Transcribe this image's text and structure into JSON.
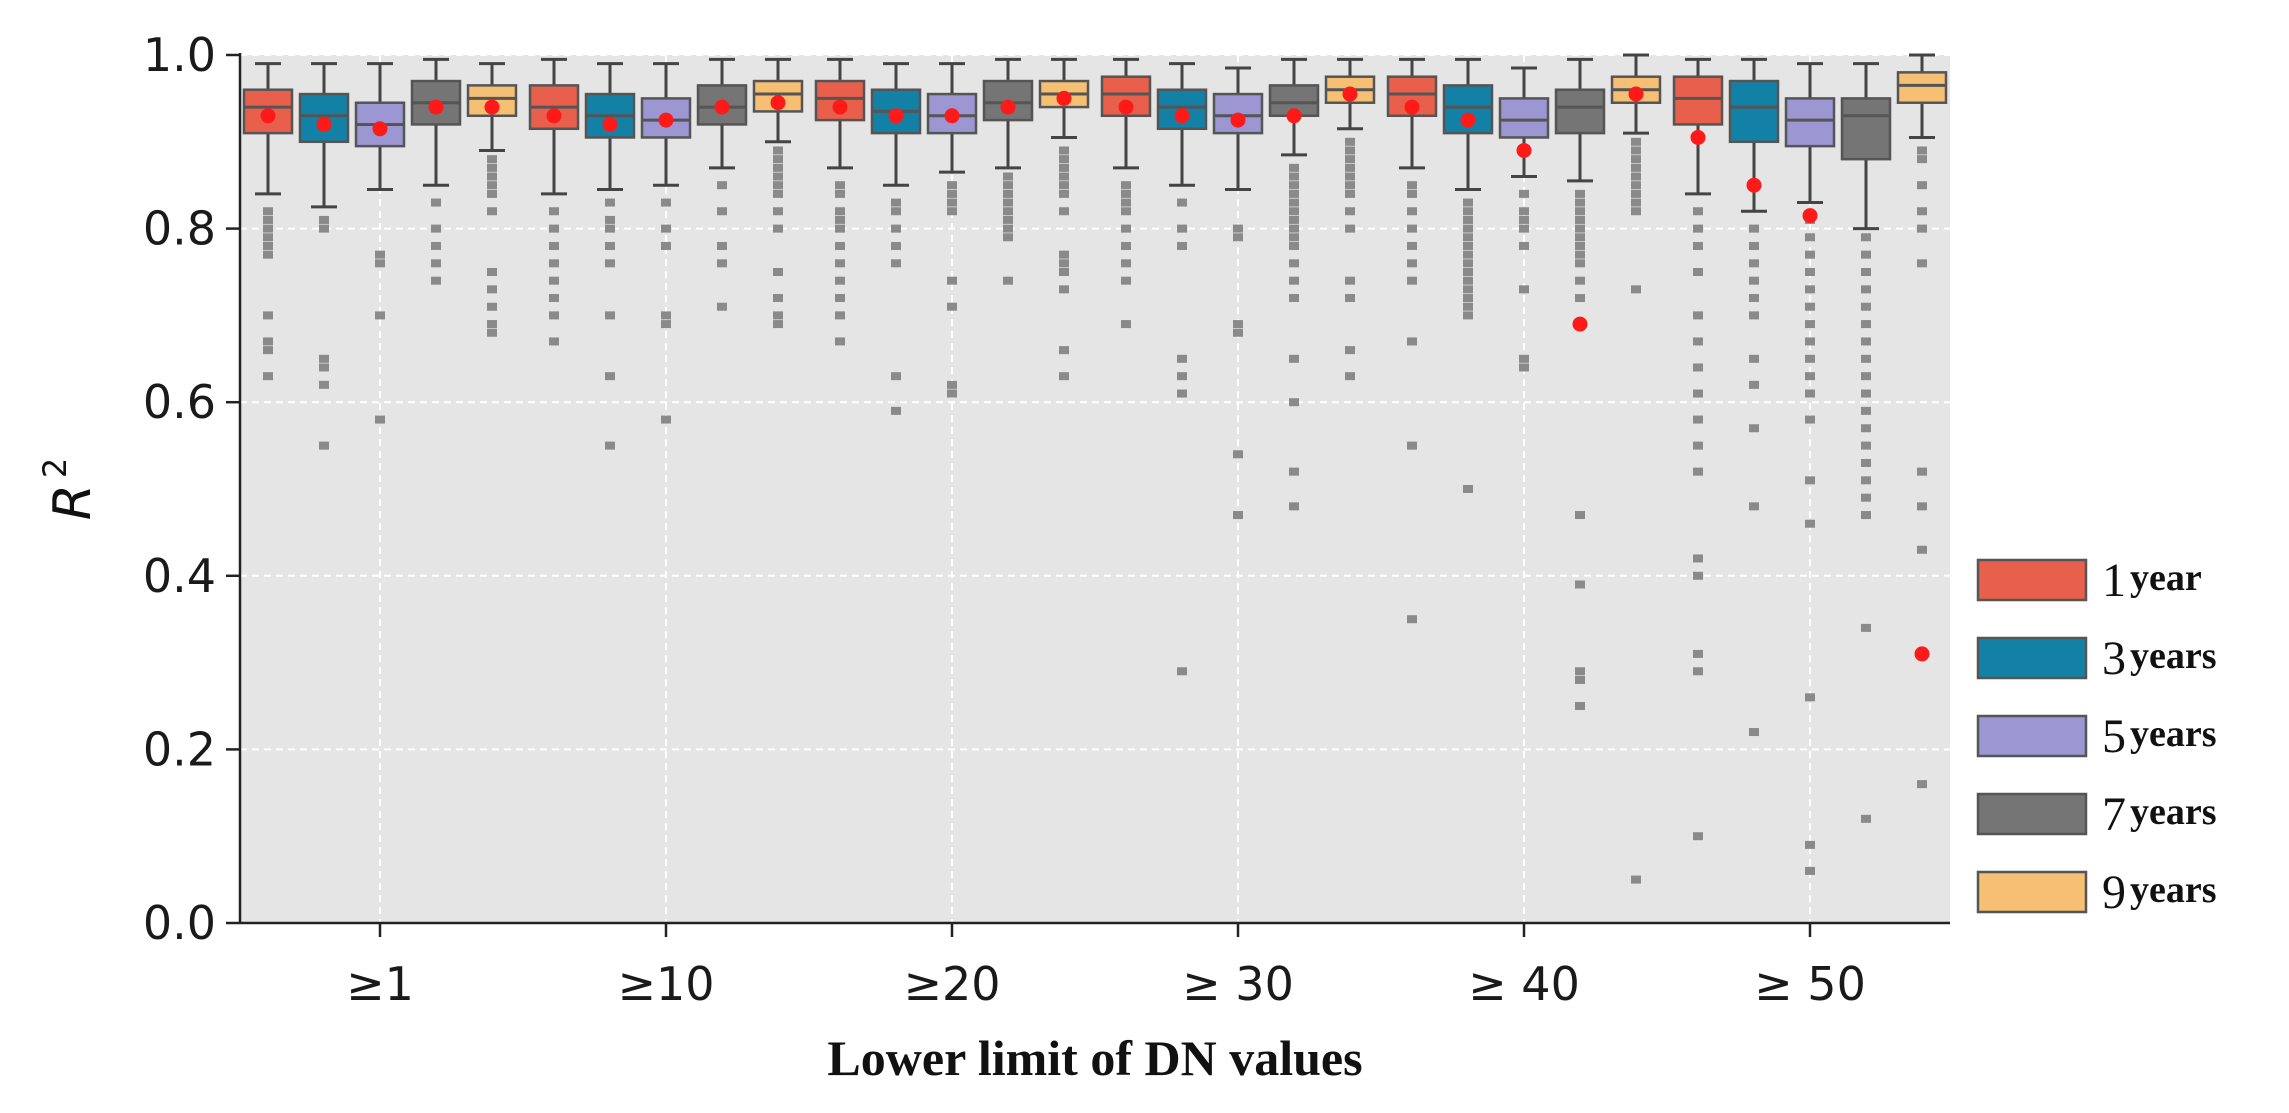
{
  "chart_data": {
    "type": "box",
    "title": "",
    "xlabel": "Lower limit of DN values",
    "ylabel_base": "R",
    "ylabel_sup": "2",
    "ylim": [
      0.0,
      1.0
    ],
    "yticks": [
      "0.0",
      "0.2",
      "0.4",
      "0.6",
      "0.8",
      "1.0"
    ],
    "grid": true,
    "legend_position": "right",
    "categories": [
      "≥1",
      "≥10",
      "≥20",
      "≥ 30",
      "≥ 40",
      "≥ 50"
    ],
    "series": [
      {
        "name": "1 year",
        "name_num": "1",
        "name_word": "year",
        "color": "#e8604c",
        "boxes": [
          {
            "whislo": 0.84,
            "q1": 0.91,
            "median": 0.94,
            "q3": 0.96,
            "whishi": 0.99,
            "mean": 0.93,
            "outliers": [
              0.82,
              0.81,
              0.8,
              0.79,
              0.78,
              0.77,
              0.7,
              0.67,
              0.66,
              0.63
            ]
          },
          {
            "whislo": 0.84,
            "q1": 0.915,
            "median": 0.94,
            "q3": 0.965,
            "whishi": 0.995,
            "mean": 0.93,
            "outliers": [
              0.82,
              0.8,
              0.78,
              0.76,
              0.74,
              0.72,
              0.7,
              0.67
            ]
          },
          {
            "whislo": 0.87,
            "q1": 0.925,
            "median": 0.95,
            "q3": 0.97,
            "whishi": 0.995,
            "mean": 0.94,
            "outliers": [
              0.85,
              0.84,
              0.82,
              0.81,
              0.8,
              0.78,
              0.76,
              0.74,
              0.72,
              0.7,
              0.67
            ]
          },
          {
            "whislo": 0.87,
            "q1": 0.93,
            "median": 0.955,
            "q3": 0.975,
            "whishi": 0.995,
            "mean": 0.94,
            "outliers": [
              0.85,
              0.84,
              0.83,
              0.82,
              0.8,
              0.78,
              0.76,
              0.74,
              0.69
            ]
          },
          {
            "whislo": 0.87,
            "q1": 0.93,
            "median": 0.955,
            "q3": 0.975,
            "whishi": 0.995,
            "mean": 0.94,
            "outliers": [
              0.85,
              0.84,
              0.82,
              0.8,
              0.78,
              0.76,
              0.74,
              0.67,
              0.55,
              0.35
            ]
          },
          {
            "whislo": 0.84,
            "q1": 0.92,
            "median": 0.95,
            "q3": 0.975,
            "whishi": 0.995,
            "mean": 0.905,
            "outliers": [
              0.82,
              0.8,
              0.78,
              0.75,
              0.7,
              0.67,
              0.64,
              0.61,
              0.58,
              0.55,
              0.52,
              0.42,
              0.4,
              0.31,
              0.29,
              0.1
            ]
          }
        ]
      },
      {
        "name": "3 years",
        "name_num": "3",
        "name_word": "years",
        "color": "#1380a6",
        "boxes": [
          {
            "whislo": 0.825,
            "q1": 0.9,
            "median": 0.93,
            "q3": 0.955,
            "whishi": 0.99,
            "mean": 0.92,
            "outliers": [
              0.81,
              0.8,
              0.65,
              0.64,
              0.62,
              0.55
            ]
          },
          {
            "whislo": 0.845,
            "q1": 0.905,
            "median": 0.93,
            "q3": 0.955,
            "whishi": 0.99,
            "mean": 0.92,
            "outliers": [
              0.83,
              0.81,
              0.8,
              0.78,
              0.76,
              0.7,
              0.63,
              0.55
            ]
          },
          {
            "whislo": 0.85,
            "q1": 0.91,
            "median": 0.935,
            "q3": 0.96,
            "whishi": 0.99,
            "mean": 0.93,
            "outliers": [
              0.83,
              0.82,
              0.8,
              0.78,
              0.76,
              0.63,
              0.59
            ]
          },
          {
            "whislo": 0.85,
            "q1": 0.915,
            "median": 0.94,
            "q3": 0.96,
            "whishi": 0.99,
            "mean": 0.93,
            "outliers": [
              0.83,
              0.8,
              0.78,
              0.65,
              0.63,
              0.61,
              0.29
            ]
          },
          {
            "whislo": 0.845,
            "q1": 0.91,
            "median": 0.94,
            "q3": 0.965,
            "whishi": 0.995,
            "mean": 0.925,
            "outliers": [
              0.83,
              0.82,
              0.81,
              0.8,
              0.79,
              0.78,
              0.77,
              0.76,
              0.75,
              0.74,
              0.73,
              0.72,
              0.71,
              0.7,
              0.5
            ]
          },
          {
            "whislo": 0.82,
            "q1": 0.9,
            "median": 0.94,
            "q3": 0.97,
            "whishi": 0.995,
            "mean": 0.85,
            "outliers": [
              0.8,
              0.78,
              0.76,
              0.74,
              0.72,
              0.7,
              0.65,
              0.62,
              0.57,
              0.48,
              0.22
            ]
          }
        ]
      },
      {
        "name": "5 years",
        "name_num": "5",
        "name_word": "years",
        "color": "#9c96d2",
        "boxes": [
          {
            "whislo": 0.845,
            "q1": 0.895,
            "median": 0.92,
            "q3": 0.945,
            "whishi": 0.99,
            "mean": 0.915,
            "outliers": [
              0.77,
              0.76,
              0.7,
              0.58
            ]
          },
          {
            "whislo": 0.85,
            "q1": 0.905,
            "median": 0.925,
            "q3": 0.95,
            "whishi": 0.99,
            "mean": 0.925,
            "outliers": [
              0.83,
              0.8,
              0.78,
              0.7,
              0.69,
              0.58
            ]
          },
          {
            "whislo": 0.865,
            "q1": 0.91,
            "median": 0.93,
            "q3": 0.955,
            "whishi": 0.99,
            "mean": 0.93,
            "outliers": [
              0.85,
              0.84,
              0.83,
              0.82,
              0.74,
              0.71,
              0.62,
              0.61
            ]
          },
          {
            "whislo": 0.845,
            "q1": 0.91,
            "median": 0.93,
            "q3": 0.955,
            "whishi": 0.985,
            "mean": 0.925,
            "outliers": [
              0.8,
              0.79,
              0.69,
              0.68,
              0.54,
              0.47
            ]
          },
          {
            "whislo": 0.86,
            "q1": 0.905,
            "median": 0.925,
            "q3": 0.95,
            "whishi": 0.985,
            "mean": 0.89,
            "outliers": [
              0.84,
              0.82,
              0.81,
              0.8,
              0.78,
              0.73,
              0.65,
              0.64
            ]
          },
          {
            "whislo": 0.83,
            "q1": 0.895,
            "median": 0.925,
            "q3": 0.95,
            "whishi": 0.99,
            "mean": 0.815,
            "outliers": [
              0.81,
              0.79,
              0.77,
              0.75,
              0.73,
              0.71,
              0.69,
              0.67,
              0.65,
              0.63,
              0.61,
              0.58,
              0.51,
              0.46,
              0.26,
              0.09,
              0.06
            ]
          }
        ]
      },
      {
        "name": "7 years",
        "name_num": "7",
        "name_word": "years",
        "color": "#757575",
        "boxes": [
          {
            "whislo": 0.85,
            "q1": 0.92,
            "median": 0.945,
            "q3": 0.97,
            "whishi": 0.995,
            "mean": 0.94,
            "outliers": [
              0.83,
              0.8,
              0.78,
              0.76,
              0.74
            ]
          },
          {
            "whislo": 0.87,
            "q1": 0.92,
            "median": 0.94,
            "q3": 0.965,
            "whishi": 0.995,
            "mean": 0.94,
            "outliers": [
              0.85,
              0.82,
              0.78,
              0.76,
              0.71
            ]
          },
          {
            "whislo": 0.87,
            "q1": 0.925,
            "median": 0.945,
            "q3": 0.97,
            "whishi": 0.995,
            "mean": 0.94,
            "outliers": [
              0.86,
              0.85,
              0.84,
              0.83,
              0.82,
              0.81,
              0.8,
              0.79,
              0.74
            ]
          },
          {
            "whislo": 0.885,
            "q1": 0.93,
            "median": 0.945,
            "q3": 0.965,
            "whishi": 0.995,
            "mean": 0.93,
            "outliers": [
              0.87,
              0.86,
              0.85,
              0.84,
              0.83,
              0.82,
              0.81,
              0.8,
              0.79,
              0.78,
              0.76,
              0.74,
              0.72,
              0.65,
              0.6,
              0.52,
              0.48
            ]
          },
          {
            "whislo": 0.855,
            "q1": 0.91,
            "median": 0.94,
            "q3": 0.96,
            "whishi": 0.995,
            "mean": 0.69,
            "outliers": [
              0.84,
              0.83,
              0.82,
              0.81,
              0.8,
              0.79,
              0.78,
              0.77,
              0.76,
              0.74,
              0.72,
              0.47,
              0.39,
              0.29,
              0.28,
              0.25
            ]
          },
          {
            "whislo": 0.8,
            "q1": 0.88,
            "median": 0.93,
            "q3": 0.95,
            "whishi": 0.99,
            "mean": null,
            "outliers": [
              0.79,
              0.77,
              0.75,
              0.73,
              0.71,
              0.69,
              0.67,
              0.65,
              0.63,
              0.61,
              0.59,
              0.57,
              0.55,
              0.53,
              0.51,
              0.49,
              0.47,
              0.34,
              0.12
            ]
          }
        ]
      },
      {
        "name": "9 years",
        "name_num": "9",
        "name_word": "years",
        "color": "#f5c074",
        "boxes": [
          {
            "whislo": 0.89,
            "q1": 0.93,
            "median": 0.95,
            "q3": 0.965,
            "whishi": 0.99,
            "mean": 0.94,
            "outliers": [
              0.88,
              0.87,
              0.86,
              0.85,
              0.84,
              0.82,
              0.75,
              0.73,
              0.71,
              0.69,
              0.68
            ]
          },
          {
            "whislo": 0.9,
            "q1": 0.935,
            "median": 0.955,
            "q3": 0.97,
            "whishi": 0.995,
            "mean": 0.945,
            "outliers": [
              0.89,
              0.88,
              0.87,
              0.86,
              0.85,
              0.84,
              0.82,
              0.8,
              0.75,
              0.72,
              0.7,
              0.69
            ]
          },
          {
            "whislo": 0.905,
            "q1": 0.94,
            "median": 0.955,
            "q3": 0.97,
            "whishi": 0.995,
            "mean": 0.95,
            "outliers": [
              0.89,
              0.88,
              0.87,
              0.86,
              0.85,
              0.84,
              0.82,
              0.77,
              0.76,
              0.75,
              0.73,
              0.66,
              0.63
            ]
          },
          {
            "whislo": 0.915,
            "q1": 0.945,
            "median": 0.96,
            "q3": 0.975,
            "whishi": 0.995,
            "mean": 0.955,
            "outliers": [
              0.9,
              0.89,
              0.88,
              0.87,
              0.86,
              0.85,
              0.84,
              0.82,
              0.8,
              0.74,
              0.72,
              0.66,
              0.63
            ]
          },
          {
            "whislo": 0.91,
            "q1": 0.945,
            "median": 0.96,
            "q3": 0.975,
            "whishi": 1.0,
            "mean": 0.955,
            "outliers": [
              0.9,
              0.89,
              0.88,
              0.87,
              0.86,
              0.85,
              0.84,
              0.83,
              0.82,
              0.73,
              0.05
            ]
          },
          {
            "whislo": 0.905,
            "q1": 0.945,
            "median": 0.965,
            "q3": 0.98,
            "whishi": 1.0,
            "mean": 0.31,
            "outliers": [
              0.89,
              0.88,
              0.85,
              0.82,
              0.8,
              0.76,
              0.52,
              0.48,
              0.43,
              0.16
            ]
          }
        ]
      }
    ]
  }
}
